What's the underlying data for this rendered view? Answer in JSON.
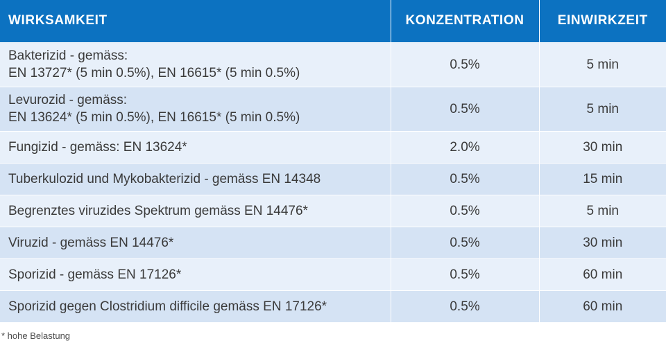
{
  "header": {
    "col_efficacy": "WIRKSAMKEIT",
    "col_concentration": "KONZENTRATION",
    "col_time": "EINWIRKZEIT"
  },
  "rows": [
    {
      "name_line1": "Bakterizid - gemäss:",
      "name_line2": "EN 13727* (5 min 0.5%), EN 16615* (5 min 0.5%)",
      "concentration": "0.5%",
      "time": "5 min"
    },
    {
      "name_line1": "Levurozid -  gemäss:",
      "name_line2": "EN 13624* (5 min 0.5%), EN 16615* (5 min 0.5%)",
      "concentration": "0.5%",
      "time": "5 min"
    },
    {
      "name_line1": "Fungizid - gemäss: EN 13624*",
      "concentration": "2.0%",
      "time": "30 min"
    },
    {
      "name_line1": "Tuberkulozid und Mykobakterizid - gemäss EN 14348",
      "concentration": "0.5%",
      "time": "15 min"
    },
    {
      "name_line1": "Begrenztes viruzides Spektrum gemäss EN 14476*",
      "concentration": "0.5%",
      "time": "5 min"
    },
    {
      "name_line1": "Viruzid -  gemäss EN 14476*",
      "concentration": "0.5%",
      "time": "30 min"
    },
    {
      "name_line1": "Sporizid -  gemäss EN 17126*",
      "concentration": "0.5%",
      "time": "60 min"
    },
    {
      "name_line1": "Sporizid gegen Clostridium difficile gemäss EN 17126*",
      "concentration": "0.5%",
      "time": "60 min"
    }
  ],
  "footnote": "* hohe Belastung",
  "colors": {
    "header_bg": "#0c72c1",
    "row_light": "#e8f0fa",
    "row_dark": "#d5e3f4"
  }
}
